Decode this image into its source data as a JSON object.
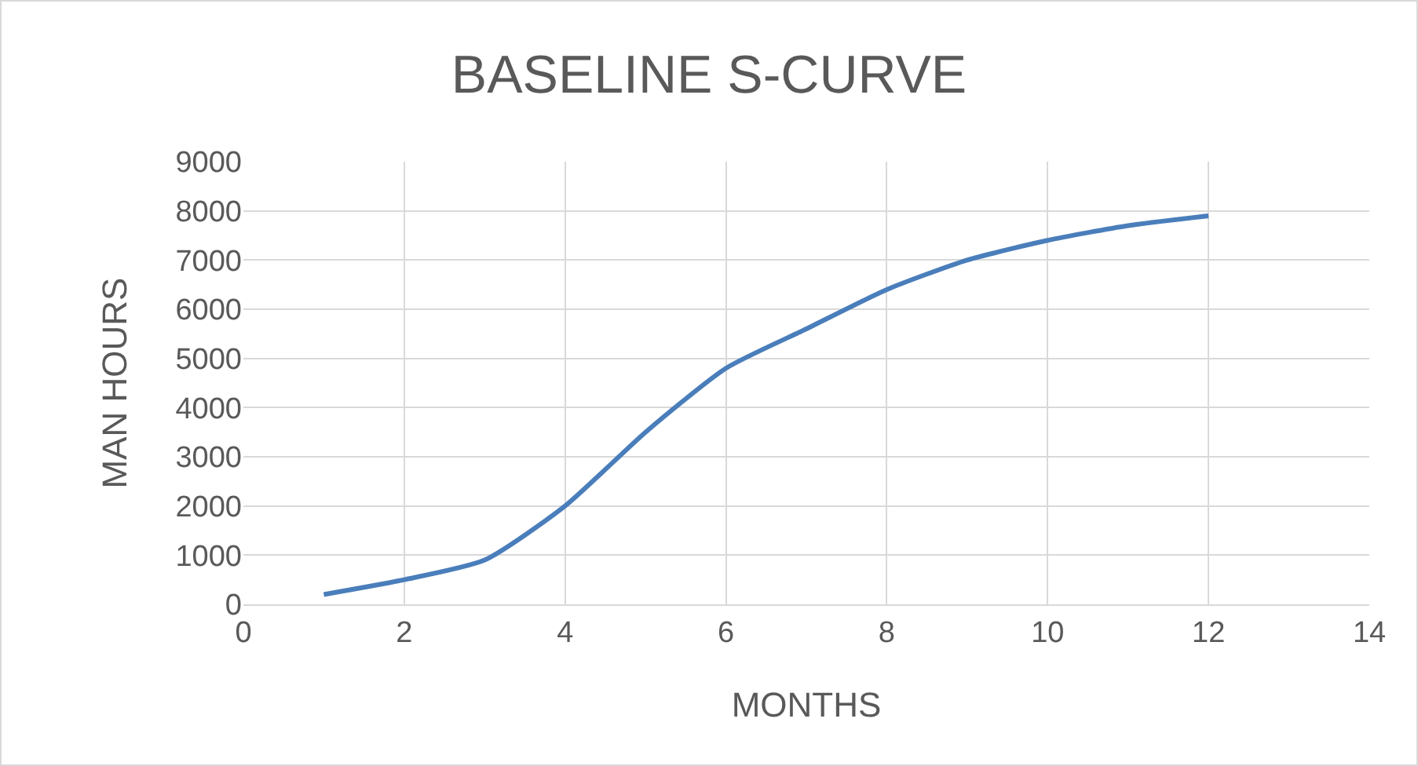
{
  "chart_data": {
    "type": "line",
    "title": "BASELINE S-CURVE",
    "xlabel": "MONTHS",
    "ylabel": "MAN HOURS",
    "x": [
      1,
      2,
      3,
      4,
      5,
      6,
      7,
      8,
      9,
      10,
      11,
      12
    ],
    "series": [
      {
        "color": "#4a7ebb",
        "values": [
          200,
          500,
          900,
          2000,
          3500,
          4800,
          5600,
          6400,
          7000,
          7400,
          7700,
          7900
        ]
      }
    ],
    "xlim": [
      0,
      14
    ],
    "xticks": [
      0,
      2,
      4,
      6,
      8,
      10,
      12,
      14
    ],
    "ylim": [
      0,
      9000
    ],
    "yticks": [
      0,
      1000,
      2000,
      3000,
      4000,
      5000,
      6000,
      7000,
      8000,
      9000
    ],
    "grid": true,
    "marker": "none",
    "line_style": "solid"
  }
}
